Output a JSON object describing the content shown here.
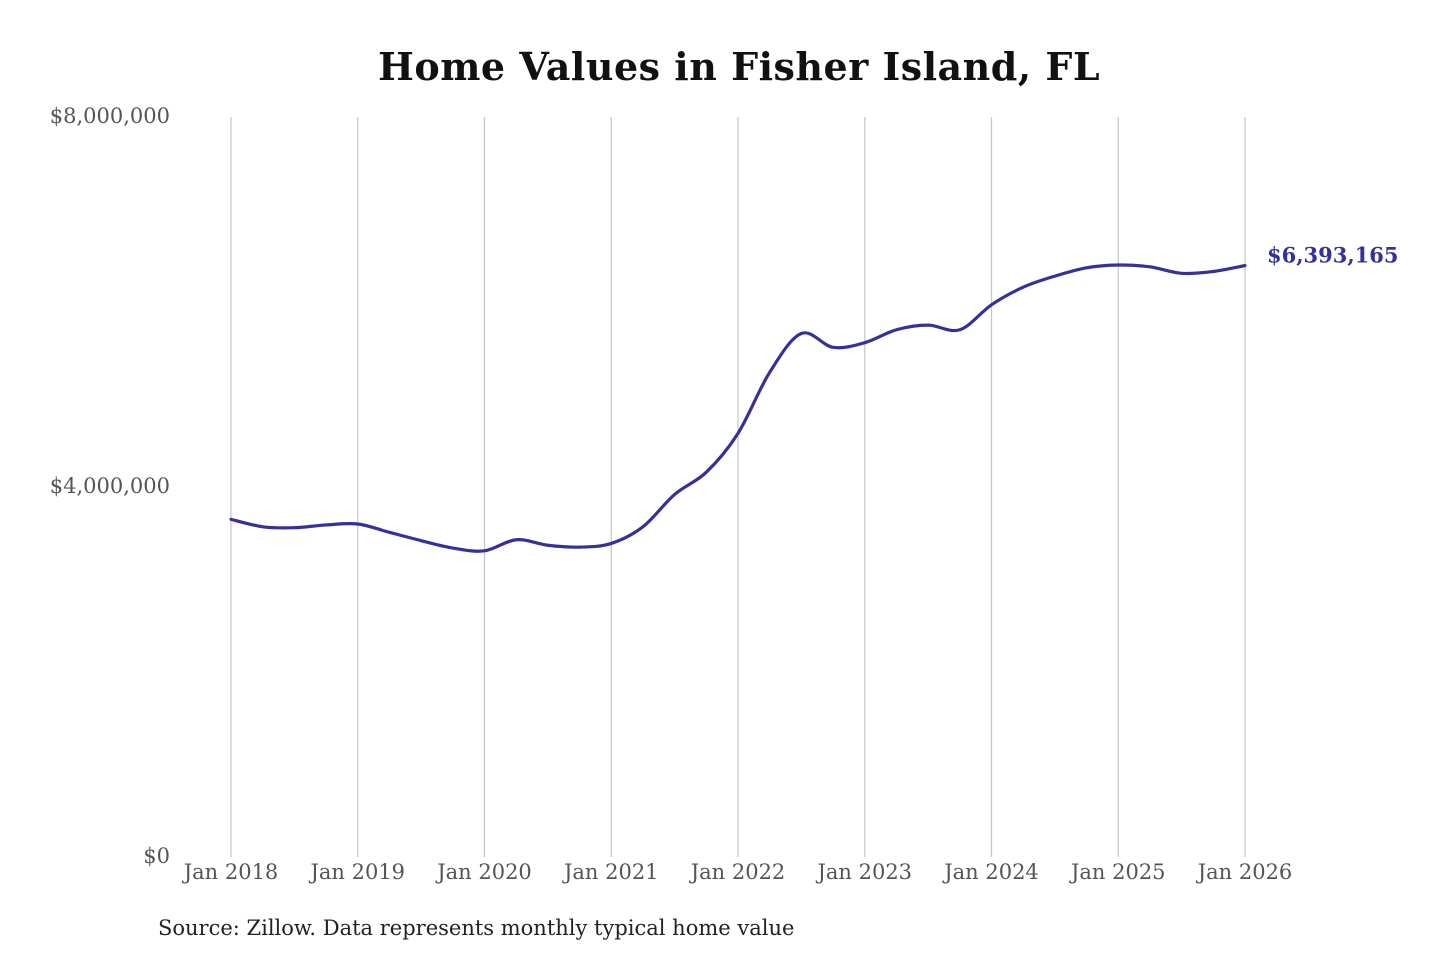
{
  "chart_data": {
    "type": "line",
    "title": "Home Values in Fisher Island, FL",
    "source": "Source: Zillow. Data represents monthly typical home value",
    "xlabel": "",
    "ylabel": "",
    "ylim": [
      0,
      8000000
    ],
    "xlim": [
      "2018-01",
      "2026-01"
    ],
    "y_ticks": [
      0,
      4000000,
      8000000
    ],
    "y_tick_labels": [
      "$0",
      "$4,000,000",
      "$8,000,000"
    ],
    "x_tick_labels": [
      "Jan 2018",
      "Jan 2019",
      "Jan 2020",
      "Jan 2021",
      "Jan 2022",
      "Jan 2023",
      "Jan 2024",
      "Jan 2025",
      "Jan 2026"
    ],
    "grid": "vertical",
    "line_color": "#35309a",
    "end_label": "$6,393,165",
    "series": [
      {
        "x": [
          "2018-01",
          "2018-04",
          "2018-07",
          "2018-10",
          "2019-01",
          "2019-04",
          "2019-07",
          "2019-10",
          "2020-01",
          "2020-04",
          "2020-07",
          "2020-10",
          "2021-01",
          "2021-04",
          "2021-07",
          "2021-10",
          "2022-01",
          "2022-04",
          "2022-07",
          "2022-10",
          "2023-01",
          "2023-04",
          "2023-07",
          "2023-10",
          "2024-01",
          "2024-04",
          "2024-07",
          "2024-10",
          "2025-01",
          "2025-04",
          "2025-07",
          "2025-10",
          "2026-01"
        ],
        "values": [
          3650000,
          3570000,
          3560000,
          3590000,
          3600000,
          3510000,
          3420000,
          3340000,
          3310000,
          3430000,
          3370000,
          3350000,
          3390000,
          3570000,
          3920000,
          4160000,
          4580000,
          5240000,
          5660000,
          5510000,
          5560000,
          5700000,
          5750000,
          5700000,
          5970000,
          6160000,
          6280000,
          6370000,
          6400000,
          6380000,
          6310000,
          6330000,
          6393165
        ]
      }
    ]
  }
}
